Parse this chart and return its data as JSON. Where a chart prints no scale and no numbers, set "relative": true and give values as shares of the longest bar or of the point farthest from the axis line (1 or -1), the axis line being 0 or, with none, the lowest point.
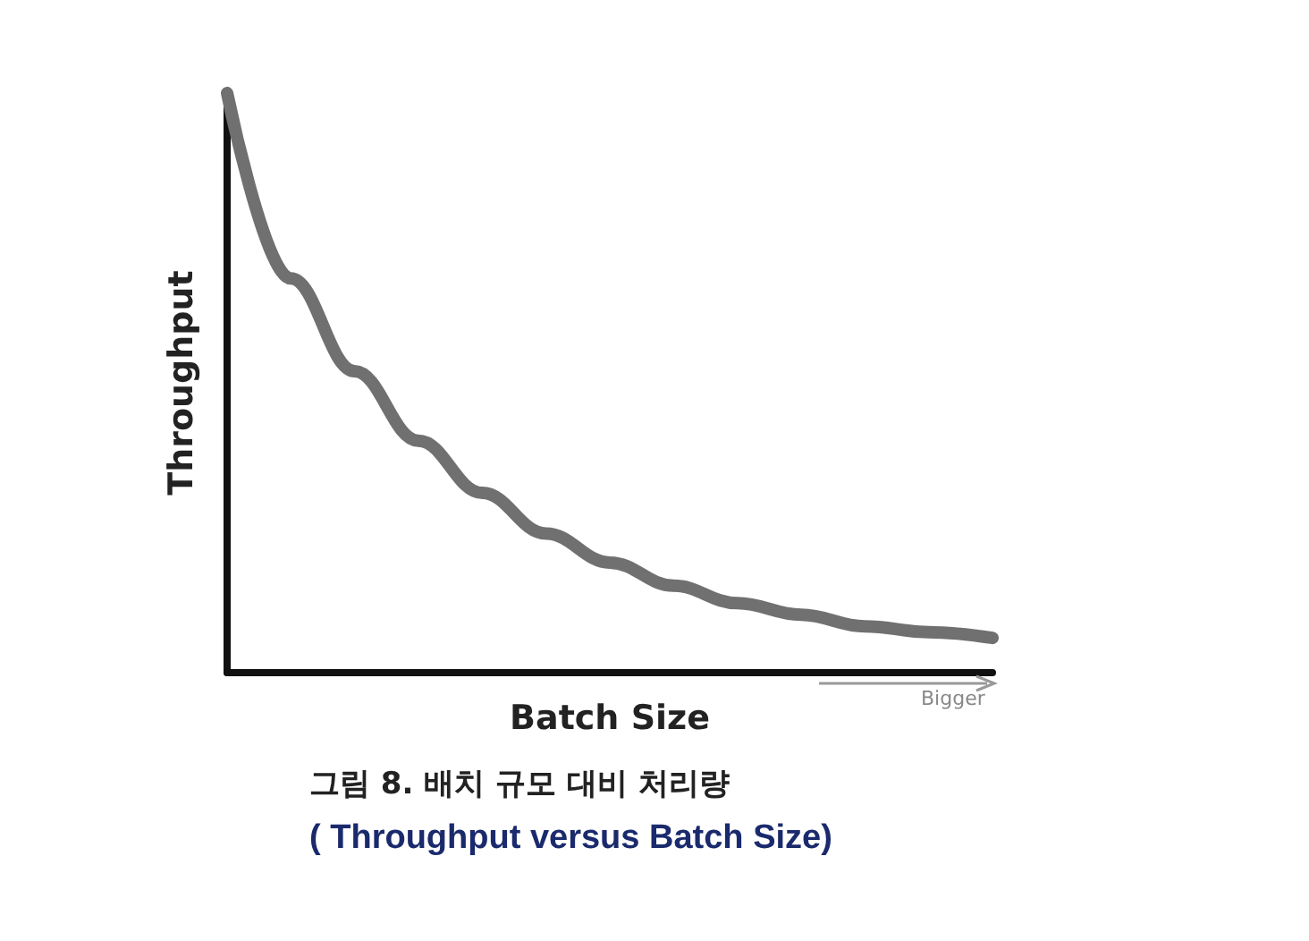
{
  "chart_data": {
    "type": "line",
    "title": "그림 8. 배치 규모 대비 처리량",
    "subtitle": "( Throughput versus Batch Size)",
    "xlabel": "Batch Size",
    "ylabel": "Throughput",
    "annotations": [
      "Bigger"
    ],
    "relative": true,
    "grid": false,
    "categories": [
      null,
      null,
      null,
      null,
      null,
      null,
      null,
      null,
      null,
      null,
      null,
      null,
      null
    ],
    "series": [
      {
        "color": "#707070",
        "values": [
          1,
          0.68,
          0.52,
          0.4,
          0.31,
          0.24,
          0.19,
          0.15,
          0.12,
          0.1,
          0.08,
          0.07,
          0.06
        ]
      }
    ]
  }
}
